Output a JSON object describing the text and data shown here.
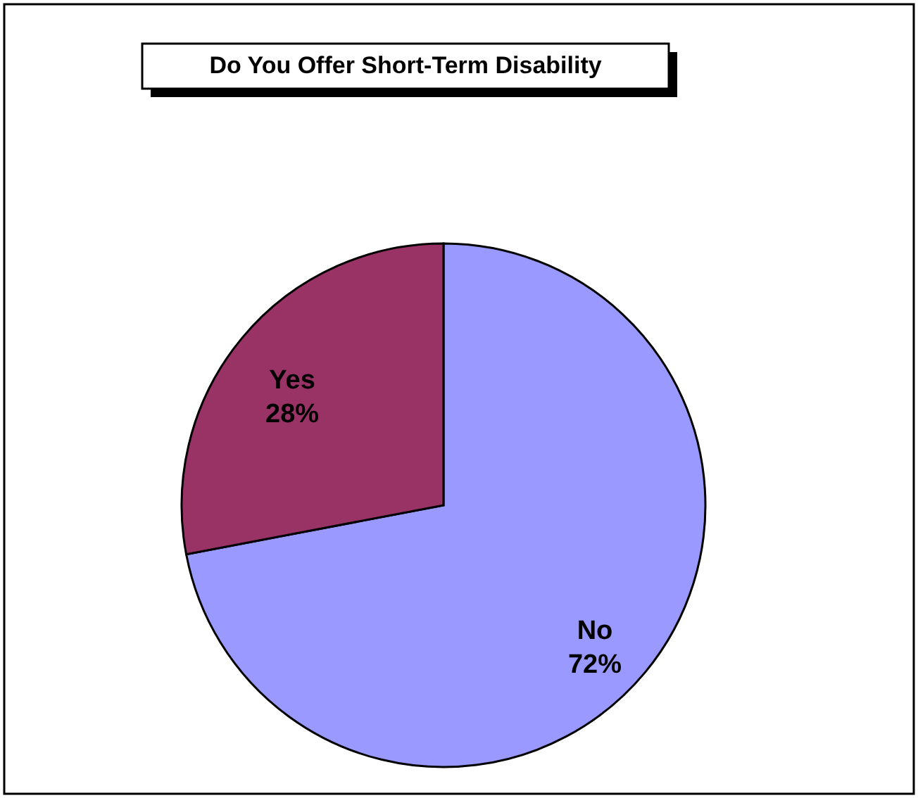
{
  "chart_data": {
    "type": "pie",
    "title": "Do You Offer Short-Term Disability",
    "categories": [
      "No",
      "Yes"
    ],
    "values": [
      72,
      28
    ],
    "colors": [
      "#9999ff",
      "#993366"
    ],
    "value_labels": [
      "72%",
      "28%"
    ],
    "legend": false
  }
}
